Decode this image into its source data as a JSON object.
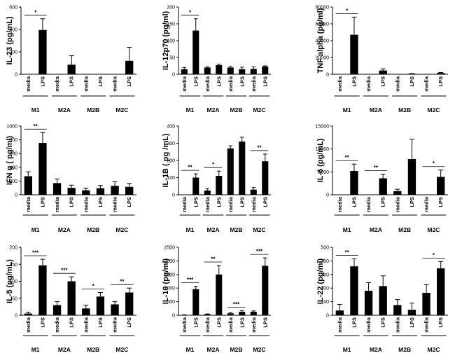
{
  "colors": {
    "bar": "#000000",
    "axis": "#000000",
    "background": "#ffffff"
  },
  "chart_data": [
    {
      "type": "bar",
      "ylabel": "IL-23 (pg/mL)",
      "ylim": [
        0,
        600
      ],
      "yticks": [
        "0",
        "200",
        "400",
        "600"
      ],
      "categories": [
        "media",
        "LPS",
        "media",
        "LPS",
        "media",
        "LPS",
        "media",
        "LPS"
      ],
      "groups": [
        "M1",
        "M2A",
        "M2B",
        "M2C"
      ],
      "values": [
        0,
        395,
        0,
        85,
        0,
        0,
        0,
        120
      ],
      "errors": [
        0,
        100,
        0,
        80,
        0,
        0,
        0,
        120
      ],
      "significance": [
        {
          "pair": [
            0,
            1
          ],
          "label": "*"
        }
      ]
    },
    {
      "type": "bar",
      "ylabel": "IL-12p70 (pg/ml)",
      "ylim": [
        0,
        200
      ],
      "yticks": [
        "0",
        "50",
        "100",
        "150",
        "200"
      ],
      "categories": [
        "media",
        "LPS",
        "media",
        "LPS",
        "media",
        "LPS",
        "media",
        "LPS"
      ],
      "groups": [
        "M1",
        "M2A",
        "M2B",
        "M2C"
      ],
      "values": [
        15,
        130,
        20,
        27,
        20,
        15,
        16,
        23
      ],
      "errors": [
        5,
        35,
        2,
        3,
        3,
        6,
        6,
        2
      ],
      "significance": [
        {
          "pair": [
            0,
            1
          ],
          "label": "*"
        }
      ]
    },
    {
      "type": "bar",
      "ylabel": "TNF alpha (pg/ml)",
      "ylim": [
        0,
        80000
      ],
      "yticks": [
        "0",
        "20000",
        "40000",
        "60000",
        "80000"
      ],
      "categories": [
        "media",
        "LPS",
        "media",
        "LPS",
        "media",
        "LPS",
        "media",
        "LPS"
      ],
      "groups": [
        "M1",
        "M2A",
        "M2B",
        "M2C"
      ],
      "values": [
        0,
        47000,
        0,
        4500,
        0,
        600,
        0,
        1500
      ],
      "errors": [
        0,
        21000,
        0,
        2000,
        0,
        300,
        0,
        600
      ],
      "significance": [
        {
          "pair": [
            0,
            1
          ],
          "label": "*"
        }
      ]
    },
    {
      "type": "bar",
      "ylabel": "IFN g ( pg/ml)",
      "ylim": [
        0,
        1000
      ],
      "yticks": [
        "0",
        "200",
        "400",
        "600",
        "800",
        "1000"
      ],
      "categories": [
        "media",
        "LPS",
        "media",
        "LPS",
        "media",
        "LPS",
        "media",
        "LPS"
      ],
      "groups": [
        "M1",
        "M2A",
        "M2B",
        "M2C"
      ],
      "values": [
        270,
        755,
        170,
        100,
        65,
        95,
        130,
        115
      ],
      "errors": [
        65,
        150,
        60,
        40,
        30,
        40,
        60,
        50
      ],
      "significance": [
        {
          "pair": [
            0,
            1
          ],
          "label": "**"
        }
      ]
    },
    {
      "type": "bar",
      "ylabel": "IL-1B ( pg /mL)",
      "ylim": [
        0,
        400
      ],
      "yticks": [
        "0",
        "100",
        "200",
        "300",
        "400"
      ],
      "categories": [
        "media",
        "LPS",
        "media",
        "LPS",
        "media",
        "LPS",
        "media",
        "LPS"
      ],
      "groups": [
        "M1",
        "M2A",
        "M2B",
        "M2C"
      ],
      "values": [
        0,
        100,
        25,
        110,
        270,
        310,
        30,
        195
      ],
      "errors": [
        0,
        22,
        12,
        28,
        15,
        25,
        12,
        42
      ],
      "significance": [
        {
          "pair": [
            0,
            1
          ],
          "label": "**"
        },
        {
          "pair": [
            2,
            3
          ],
          "label": "*"
        },
        {
          "pair": [
            6,
            7
          ],
          "label": "**"
        }
      ]
    },
    {
      "type": "bar",
      "ylabel": "IL-6 (pg/mL)",
      "ylim": [
        0,
        15000
      ],
      "yticks": [
        "0",
        "5000",
        "10000",
        "15000"
      ],
      "categories": [
        "media",
        "LPS",
        "media",
        "LPS",
        "media",
        "LPS",
        "media",
        "LPS"
      ],
      "groups": [
        "M1",
        "M2A",
        "M2B",
        "M2C"
      ],
      "values": [
        0,
        5200,
        0,
        3600,
        800,
        7800,
        0,
        3900
      ],
      "errors": [
        0,
        1500,
        0,
        900,
        400,
        4300,
        0,
        1500
      ],
      "significance": [
        {
          "pair": [
            0,
            1
          ],
          "label": "**"
        },
        {
          "pair": [
            2,
            3
          ],
          "label": "**"
        },
        {
          "pair": [
            6,
            7
          ],
          "label": "*"
        }
      ]
    },
    {
      "type": "bar",
      "ylabel": "IL-5 (pg/mL)",
      "ylim": [
        0,
        200
      ],
      "yticks": [
        "0",
        "50",
        "100",
        "150",
        "200"
      ],
      "categories": [
        "media",
        "LPS",
        "media",
        "LPS",
        "media",
        "LPS",
        "media",
        "LPS"
      ],
      "groups": [
        "M1",
        "M2A",
        "M2B",
        "M2C"
      ],
      "values": [
        5,
        147,
        30,
        100,
        20,
        55,
        32,
        67
      ],
      "errors": [
        4,
        18,
        10,
        13,
        10,
        12,
        8,
        13
      ],
      "significance": [
        {
          "pair": [
            0,
            1
          ],
          "label": "***"
        },
        {
          "pair": [
            2,
            3
          ],
          "label": "***"
        },
        {
          "pair": [
            4,
            5
          ],
          "label": "*"
        },
        {
          "pair": [
            6,
            7
          ],
          "label": "**"
        }
      ]
    },
    {
      "type": "bar",
      "ylabel": "IL-10 (pg/ml)",
      "ylim": [
        0,
        2500
      ],
      "yticks": [
        "0",
        "500",
        "1000",
        "1500",
        "2000",
        "2500"
      ],
      "categories": [
        "media",
        "LPS",
        "media",
        "LPS",
        "media",
        "LPS",
        "media",
        "LPS"
      ],
      "groups": [
        "M1",
        "M2A",
        "M2B",
        "M2C"
      ],
      "values": [
        15,
        960,
        40,
        1500,
        70,
        130,
        130,
        1820
      ],
      "errors": [
        5,
        110,
        10,
        330,
        20,
        40,
        30,
        290
      ],
      "significance": [
        {
          "pair": [
            0,
            1
          ],
          "label": "***"
        },
        {
          "pair": [
            2,
            3
          ],
          "label": "**"
        },
        {
          "pair": [
            4,
            5
          ],
          "label": "***"
        },
        {
          "pair": [
            6,
            7
          ],
          "label": "***"
        }
      ]
    },
    {
      "type": "bar",
      "ylabel": "IL-22 (pg/ml)",
      "ylim": [
        0,
        500
      ],
      "yticks": [
        "0",
        "100",
        "200",
        "300",
        "400",
        "500"
      ],
      "categories": [
        "media",
        "LPS",
        "media",
        "LPS",
        "media",
        "LPS",
        "media",
        "LPS"
      ],
      "groups": [
        "M1",
        "M2A",
        "M2B",
        "M2C"
      ],
      "values": [
        35,
        360,
        180,
        215,
        75,
        40,
        165,
        345
      ],
      "errors": [
        45,
        55,
        60,
        75,
        40,
        50,
        60,
        50
      ],
      "significance": [
        {
          "pair": [
            0,
            1
          ],
          "label": "**"
        },
        {
          "pair": [
            6,
            7
          ],
          "label": "*"
        }
      ]
    }
  ]
}
